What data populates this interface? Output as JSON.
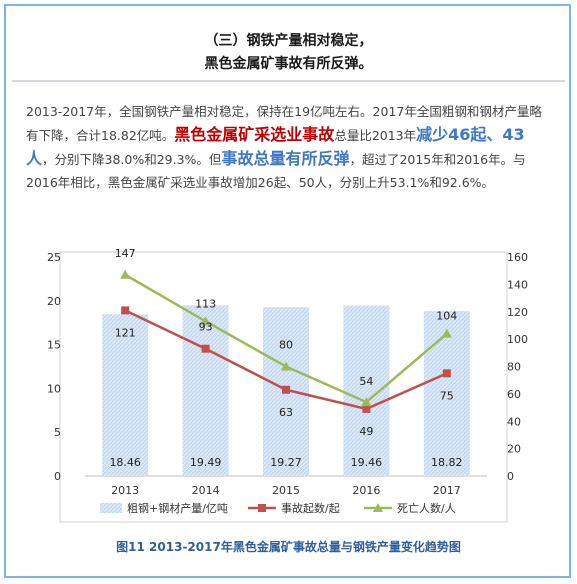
{
  "heading": {
    "line1": "（三）钢铁产量相对稳定，",
    "line2": "黑色金属矿事故有所反弹。"
  },
  "paragraph": {
    "p1": "2013-2017年，全国钢铁产量相对稳定，保持在19亿吨左右。2017年全国粗钢和钢材产量略有下降，合计18.82亿吨。",
    "p2": "黑色金属矿采选业事故",
    "p3": "总量比2013年",
    "p4": "减少46起、43人",
    "p5": "，分别下降38.0%和29.3%。但",
    "p6": "事故总量有所反弹",
    "p7": "，超过了2015年和2016年。与2016年相比，黑色金属矿采选业事故增加26起、50人，分别上升53.1%和92.6%。"
  },
  "caption": "图11  2013-2017年黑色金属矿事故总量与钢铁产量变化趋势图",
  "chart_data": {
    "type": "bar",
    "categories": [
      "2013",
      "2014",
      "2015",
      "2016",
      "2017"
    ],
    "series": [
      {
        "name": "粗钢+钢材产量/亿吨",
        "type": "bar",
        "axis": "left",
        "values": [
          18.46,
          19.49,
          19.27,
          19.46,
          18.82
        ],
        "color": "#c5d6ea"
      },
      {
        "name": "事故起数/起",
        "type": "line",
        "axis": "right",
        "values": [
          121,
          93,
          63,
          49,
          75
        ],
        "color": "#c0504d"
      },
      {
        "name": "死亡人数/人",
        "type": "line",
        "axis": "right",
        "values": [
          147,
          113,
          80,
          54,
          104
        ],
        "color": "#9bbb59"
      }
    ],
    "left_axis": {
      "min": 0,
      "max": 25,
      "ticks": [
        "0",
        "5",
        "10",
        "15",
        "20",
        "25"
      ]
    },
    "right_axis": {
      "min": 0,
      "max": 160,
      "ticks": [
        "0",
        "20",
        "40",
        "60",
        "80",
        "100",
        "120",
        "140",
        "160"
      ]
    },
    "legend_position": "bottom",
    "grid": false
  }
}
